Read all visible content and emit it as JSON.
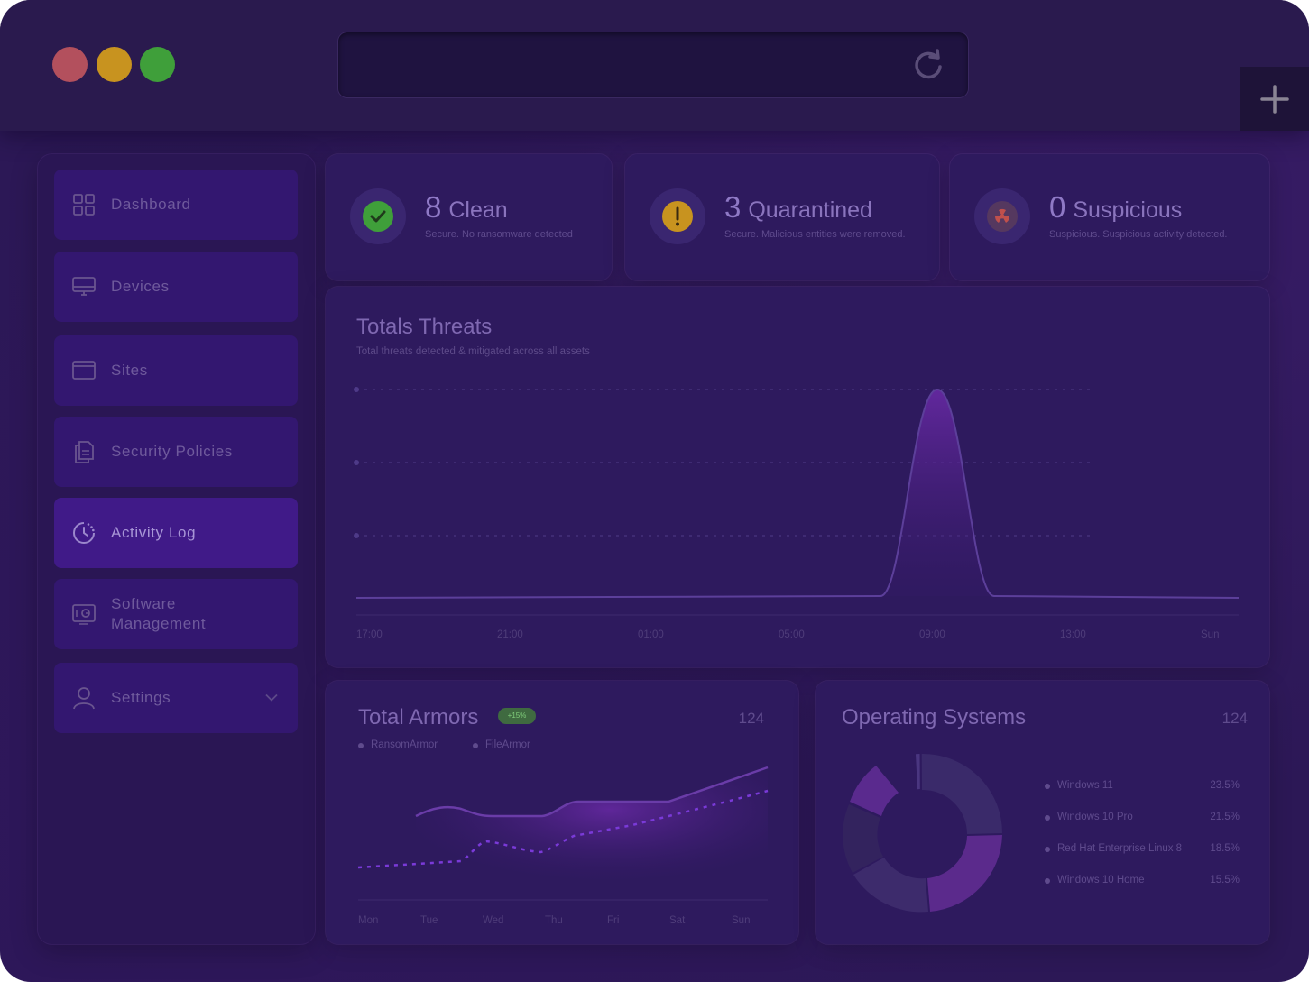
{
  "browser": {
    "reload_icon": "reload-icon",
    "new_tab_icon": "plus-icon"
  },
  "sidebar": {
    "items": [
      {
        "label": "Dashboard",
        "icon": "grid-icon"
      },
      {
        "label": "Devices",
        "icon": "monitor-icon"
      },
      {
        "label": "Sites",
        "icon": "browser-window-icon"
      },
      {
        "label": "Security Policies",
        "icon": "documents-icon"
      },
      {
        "label": "Activity Log",
        "icon": "clock-history-icon",
        "active": true
      },
      {
        "label": "Software\nManagement",
        "icon": "software-icon"
      },
      {
        "label": "Settings",
        "icon": "user-icon"
      }
    ]
  },
  "stats": [
    {
      "count": "8",
      "label": "Clean",
      "subtitle": "Secure. No ransomware detected",
      "icon": "check-icon",
      "color": "#3f9f3a"
    },
    {
      "count": "3",
      "label": "Quarantined",
      "subtitle": "Secure. Malicious entities were removed.",
      "icon": "exclamation-icon",
      "color": "#c8931f"
    },
    {
      "count": "0",
      "label": "Suspicious",
      "subtitle": "Suspicious. Suspicious activity detected.",
      "icon": "radiation-icon",
      "color": "#c0504c"
    }
  ],
  "threats": {
    "title": "Totals Threats",
    "subtitle": "Total threats detected & mitigated across all assets",
    "x_ticks": [
      "17:00",
      "21:00",
      "01:00",
      "05:00",
      "09:00",
      "13:00",
      "Sun"
    ]
  },
  "armors": {
    "title": "Total Armors",
    "badge": "+15%",
    "count": "124",
    "legend": [
      "RansomArmor",
      "FileArmor"
    ],
    "x_ticks": [
      "Mon",
      "Tue",
      "Wed",
      "Thu",
      "Fri",
      "Sat",
      "Sun"
    ]
  },
  "os": {
    "title": "Operating Systems",
    "count": "124",
    "items": [
      {
        "name": "Windows 11",
        "pct": "23.5%"
      },
      {
        "name": "Windows 10 Pro",
        "pct": "21.5%"
      },
      {
        "name": "Red Hat Enterprise Linux 8",
        "pct": "18.5%"
      },
      {
        "name": "Windows 10 Home",
        "pct": "15.5%"
      }
    ]
  },
  "colors": {
    "accent": "#6b2aa8",
    "background": "#2c1856"
  }
}
